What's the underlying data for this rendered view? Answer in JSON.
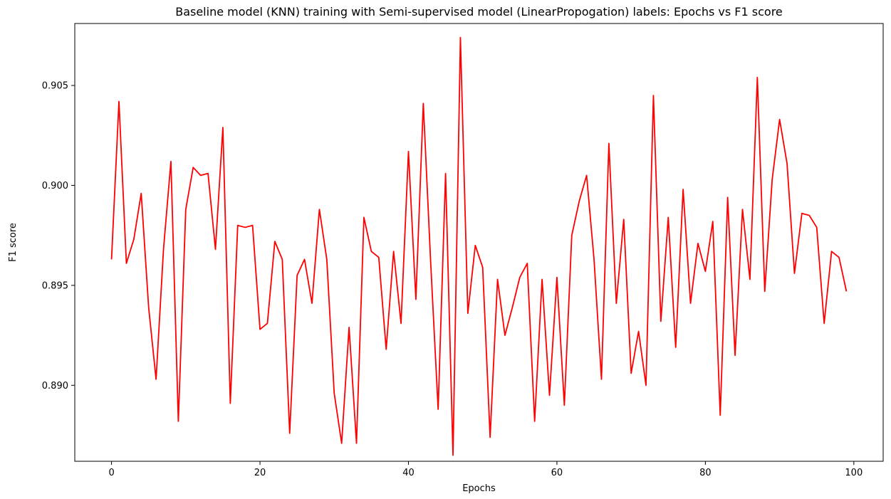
{
  "chart_data": {
    "type": "line",
    "title": "Baseline model (KNN) training with Semi-supervised model (LinearPropogation) labels: Epochs vs F1 score",
    "xlabel": "Epochs",
    "ylabel": "F1 score",
    "xlim": [
      -4.95,
      103.95
    ],
    "ylim": [
      0.8862,
      0.9081
    ],
    "x_ticks": [
      0,
      20,
      40,
      60,
      80,
      100
    ],
    "y_ticks": [
      0.89,
      0.895,
      0.9,
      0.905
    ],
    "x_tick_labels": [
      "0",
      "20",
      "40",
      "60",
      "80",
      "100"
    ],
    "y_tick_labels": [
      "0.890",
      "0.895",
      "0.900",
      "0.905"
    ],
    "grid": false,
    "series": [
      {
        "color": "#ff0000",
        "x": [
          0,
          1,
          2,
          3,
          4,
          5,
          6,
          7,
          8,
          9,
          10,
          11,
          12,
          13,
          14,
          15,
          16,
          17,
          18,
          19,
          20,
          21,
          22,
          23,
          24,
          25,
          26,
          27,
          28,
          29,
          30,
          31,
          32,
          33,
          34,
          35,
          36,
          37,
          38,
          39,
          40,
          41,
          42,
          43,
          44,
          45,
          46,
          47,
          48,
          49,
          50,
          51,
          52,
          53,
          54,
          55,
          56,
          57,
          58,
          59,
          60,
          61,
          62,
          63,
          64,
          65,
          66,
          67,
          68,
          69,
          70,
          71,
          72,
          73,
          74,
          75,
          76,
          77,
          78,
          79,
          80,
          81,
          82,
          83,
          84,
          85,
          86,
          87,
          88,
          89,
          90,
          91,
          92,
          93,
          94,
          95,
          96,
          97,
          98,
          99
        ],
        "values": [
          0.8963,
          0.9042,
          0.8961,
          0.8973,
          0.8996,
          0.8939,
          0.8903,
          0.8968,
          0.9012,
          0.8882,
          0.8988,
          0.9009,
          0.9005,
          0.9006,
          0.8968,
          0.9029,
          0.8891,
          0.898,
          0.8979,
          0.898,
          0.8928,
          0.8931,
          0.8972,
          0.8963,
          0.8876,
          0.8955,
          0.8963,
          0.8941,
          0.8988,
          0.8963,
          0.8896,
          0.8871,
          0.8929,
          0.8871,
          0.8984,
          0.8967,
          0.8964,
          0.8918,
          0.8967,
          0.8931,
          0.9017,
          0.8943,
          0.9041,
          0.8961,
          0.8888,
          0.9006,
          0.8865,
          0.9074,
          0.8936,
          0.897,
          0.8959,
          0.8874,
          0.8953,
          0.8925,
          0.8939,
          0.8954,
          0.8961,
          0.8882,
          0.8953,
          0.8895,
          0.8954,
          0.889,
          0.8975,
          0.8992,
          0.9005,
          0.8963,
          0.8903,
          0.9021,
          0.8941,
          0.8983,
          0.8906,
          0.8927,
          0.89,
          0.9045,
          0.8932,
          0.8984,
          0.8919,
          0.8998,
          0.8941,
          0.8971,
          0.8957,
          0.8982,
          0.8885,
          0.8994,
          0.8915,
          0.8988,
          0.8953,
          0.9054,
          0.8947,
          0.9003,
          0.9033,
          0.9011,
          0.8956,
          0.8986,
          0.8985,
          0.8979,
          0.8931,
          0.8967,
          0.8964,
          0.8947
        ]
      }
    ]
  }
}
